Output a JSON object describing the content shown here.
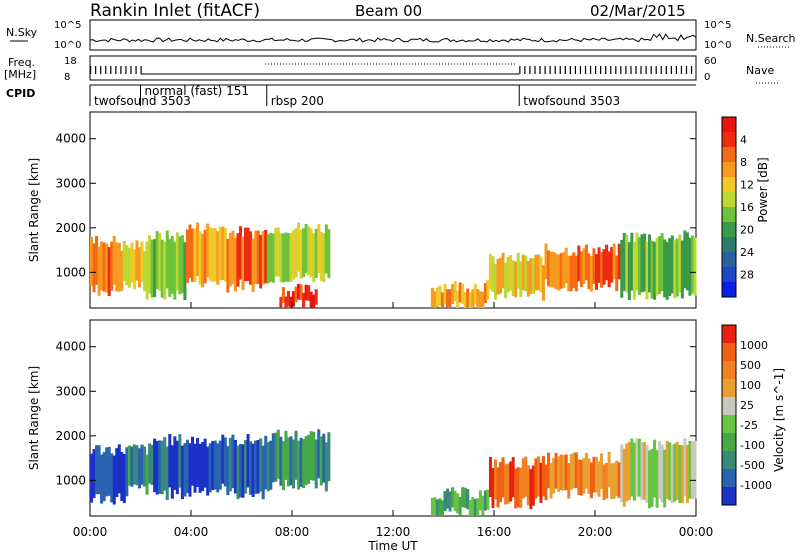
{
  "header": {
    "station": "Rankin Inlet (fitACF)",
    "beam": "Beam 00",
    "date": "02/Mar/2015"
  },
  "strips": {
    "nsky_label": "N.Sky",
    "nsearch_label": "N.Search",
    "freq_label": "Freq.",
    "freq_unit": "[MHz]",
    "nave_label": "Nave",
    "cpid_label": "CPID",
    "noise_ticks_left": [
      "10^5",
      "10^0"
    ],
    "noise_ticks_right": [
      "10^5",
      "10^0"
    ],
    "freq_ticks": [
      "18",
      "8"
    ],
    "nave_ticks": [
      "60",
      "0"
    ]
  },
  "cpid": [
    {
      "label": "twofsound 3503",
      "start": 0.0
    },
    {
      "label": "normal (fast) 151",
      "start": 2.0
    },
    {
      "label": "rbsp 200",
      "start": 7.0
    },
    {
      "label": "twofsound 3503",
      "start": 17.0
    }
  ],
  "x_axis": {
    "label": "Time UT",
    "ticks": [
      "00:00",
      "04:00",
      "08:00",
      "12:00",
      "16:00",
      "20:00",
      "00:00"
    ],
    "range_hours": [
      0,
      24
    ]
  },
  "chart_data": [
    {
      "type": "heatmap",
      "name": "power",
      "ylabel": "Slant Range [km]",
      "ylim": [
        200,
        4600
      ],
      "yticks": [
        "1000",
        "2000",
        "3000",
        "4000"
      ],
      "colorbar": {
        "label": "Power [dB]",
        "ticks": [
          "4",
          "8",
          "12",
          "16",
          "20",
          "24",
          "28"
        ],
        "colors": [
          "#0a1ee6",
          "#1e46c8",
          "#2a5fa0",
          "#2e7b6e",
          "#3a9a4a",
          "#6ec23a",
          "#bcd832",
          "#f0c828",
          "#f89a1e",
          "#f56a14",
          "#ee2a12",
          "#e8140f"
        ]
      },
      "patches": [
        {
          "t0": 0.0,
          "t1": 1.2,
          "r0": 600,
          "r1": 1700,
          "level": 9
        },
        {
          "t0": 1.2,
          "t1": 2.2,
          "r0": 700,
          "r1": 1600,
          "level": 7
        },
        {
          "t0": 2.2,
          "t1": 3.8,
          "r0": 500,
          "r1": 1800,
          "level": 5
        },
        {
          "t0": 3.8,
          "t1": 5.4,
          "r0": 800,
          "r1": 2000,
          "level": 8
        },
        {
          "t0": 5.4,
          "t1": 7.0,
          "r0": 700,
          "r1": 1900,
          "level": 9
        },
        {
          "t0": 7.0,
          "t1": 9.5,
          "r0": 900,
          "r1": 2000,
          "level": 6
        },
        {
          "t0": 7.5,
          "t1": 9.0,
          "r0": 250,
          "r1": 600,
          "level": 10
        },
        {
          "t0": 13.5,
          "t1": 15.8,
          "r0": 250,
          "r1": 700,
          "level": 8
        },
        {
          "t0": 15.8,
          "t1": 18.0,
          "r0": 500,
          "r1": 1300,
          "level": 7
        },
        {
          "t0": 18.0,
          "t1": 21.0,
          "r0": 700,
          "r1": 1500,
          "level": 9
        },
        {
          "t0": 21.0,
          "t1": 24.0,
          "r0": 500,
          "r1": 1800,
          "level": 5
        }
      ]
    },
    {
      "type": "heatmap",
      "name": "velocity",
      "ylabel": "Slant Range [km]",
      "ylim": [
        200,
        4600
      ],
      "yticks": [
        "1000",
        "2000",
        "3000",
        "4000"
      ],
      "colorbar": {
        "label": "Velocity [m s^-1]",
        "ticks": [
          "1000",
          "500",
          "100",
          "25",
          "-25",
          "-100",
          "-500",
          "-1000"
        ],
        "colors": [
          "#1a32c8",
          "#2a64b0",
          "#3a8a78",
          "#46a848",
          "#66c440",
          "#c8c8c0",
          "#e8a030",
          "#f08020",
          "#f06010",
          "#e82010"
        ]
      },
      "patches": [
        {
          "t0": 0.0,
          "t1": 1.5,
          "r0": 600,
          "r1": 1700,
          "level": 0
        },
        {
          "t0": 1.5,
          "t1": 2.5,
          "r0": 800,
          "r1": 1700,
          "level": 2
        },
        {
          "t0": 2.5,
          "t1": 4.0,
          "r0": 700,
          "r1": 1900,
          "level": 1
        },
        {
          "t0": 4.0,
          "t1": 5.5,
          "r0": 800,
          "r1": 1900,
          "level": 0
        },
        {
          "t0": 5.5,
          "t1": 7.0,
          "r0": 700,
          "r1": 1900,
          "level": 1
        },
        {
          "t0": 7.0,
          "t1": 9.5,
          "r0": 900,
          "r1": 2000,
          "level": 2
        },
        {
          "t0": 13.5,
          "t1": 15.8,
          "r0": 250,
          "r1": 700,
          "level": 3
        },
        {
          "t0": 15.8,
          "t1": 18.0,
          "r0": 500,
          "r1": 1400,
          "level": 8
        },
        {
          "t0": 18.0,
          "t1": 21.0,
          "r0": 700,
          "r1": 1500,
          "level": 7
        },
        {
          "t0": 21.0,
          "t1": 24.0,
          "r0": 500,
          "r1": 1800,
          "level": 5
        }
      ]
    }
  ]
}
